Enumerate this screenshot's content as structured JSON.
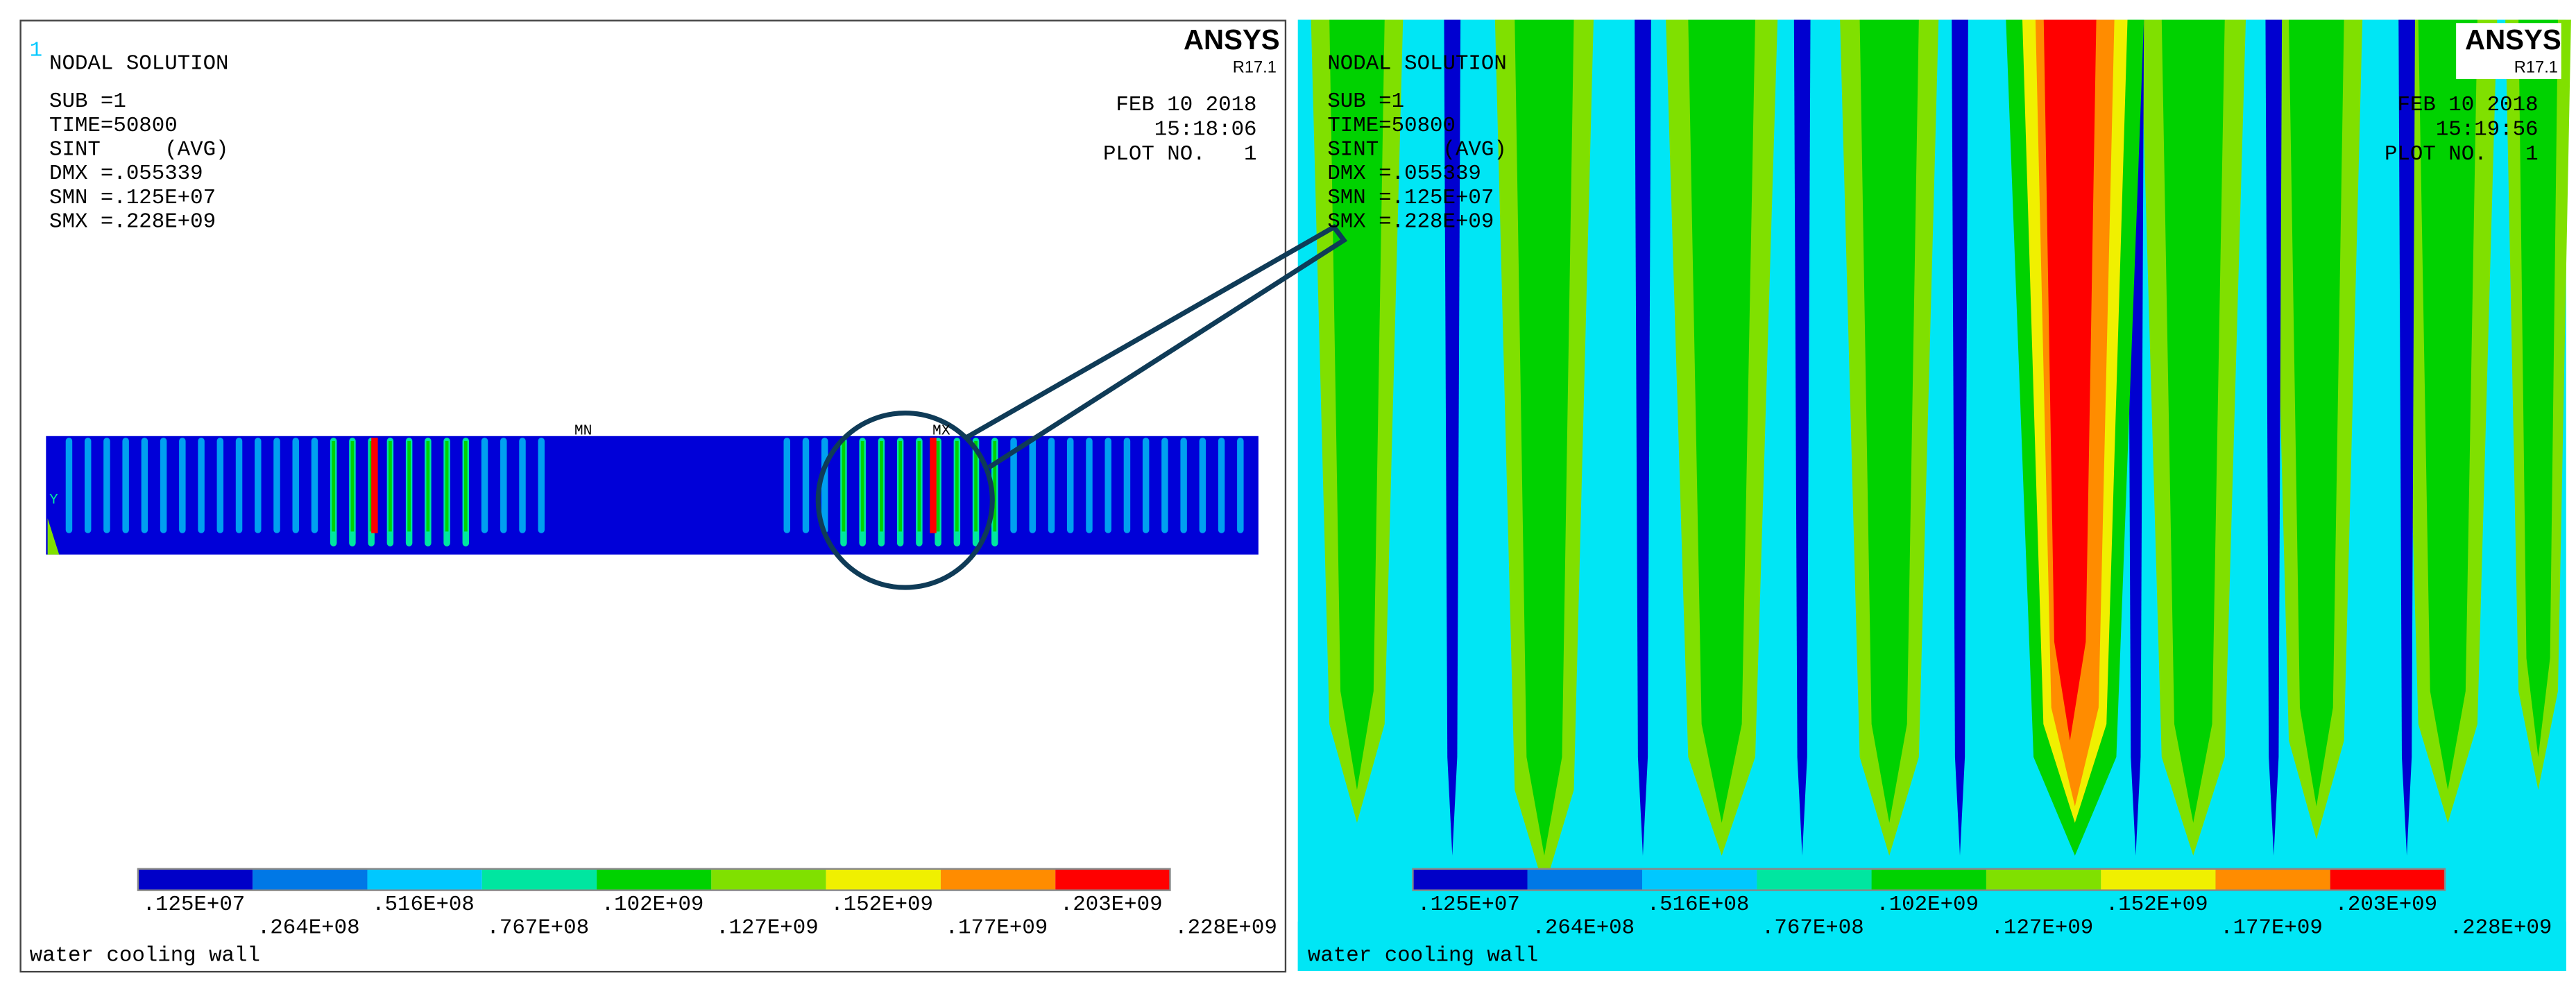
{
  "left_panel": {
    "window_number": "1",
    "brand": "ANSYS",
    "version": "R17.1",
    "title": "NODAL SOLUTION",
    "info": [
      "SUB =1",
      "TIME=50800",
      "SINT     (AVG)",
      "DMX =.055339",
      "SMN =.125E+07",
      "SMX =.228E+09"
    ],
    "date": "FEB 10 2018",
    "time": "15:18:06",
    "plot_no": "PLOT NO.   1",
    "min_marker": "MN",
    "max_marker": "MX",
    "axis_marker": "Y",
    "legend": [
      ".125E+07",
      ".264E+08",
      ".516E+08",
      ".767E+08",
      ".102E+09",
      ".127E+09",
      ".152E+09",
      ".177E+09",
      ".203E+09",
      ".228E+09"
    ],
    "caption": "water cooling wall"
  },
  "right_panel": {
    "brand": "ANSYS",
    "version": "R17.1",
    "title": "NODAL SOLUTION",
    "info": [
      "SUB =1",
      "TIME=50800",
      "SINT     (AVG)",
      "DMX =.055339",
      "SMN =.125E+07",
      "SMX =.228E+09"
    ],
    "date": "FEB 10 2018",
    "time": "15:19:56",
    "plot_no": "PLOT NO.   1",
    "legend": [
      ".125E+07",
      ".264E+08",
      ".516E+08",
      ".767E+08",
      ".102E+09",
      ".127E+09",
      ".152E+09",
      ".177E+09",
      ".203E+09",
      ".228E+09"
    ],
    "caption": "water cooling wall"
  }
}
